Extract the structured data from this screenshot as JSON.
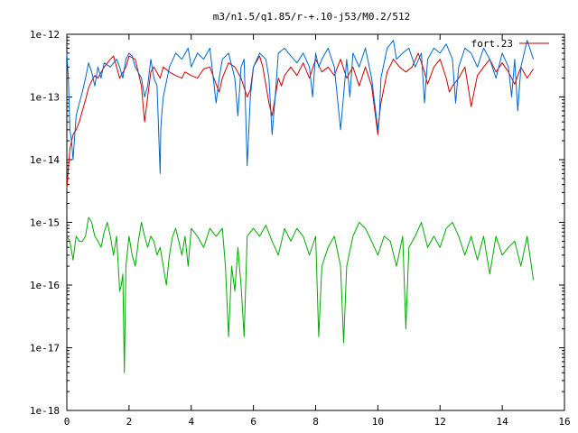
{
  "chart_data": {
    "type": "line",
    "title": "m3/n1.5/q1.85/r-+.10-j53/M0.2/512",
    "xlabel": "",
    "ylabel": "",
    "x_scale": "linear",
    "y_scale": "log",
    "xlim": [
      0,
      16
    ],
    "ylim": [
      1e-18,
      1e-12
    ],
    "x_ticks": [
      0,
      2,
      4,
      6,
      8,
      10,
      12,
      14,
      16
    ],
    "x_tick_labels": [
      "0",
      "2",
      "4",
      "6",
      "8",
      "10",
      "12",
      "14",
      "16"
    ],
    "y_ticks": [
      1e-18,
      1e-17,
      1e-16,
      1e-15,
      1e-14,
      1e-13,
      1e-12
    ],
    "y_tick_labels": [
      "1e-18",
      "1e-17",
      "1e-16",
      "1e-15",
      "1e-14",
      "1e-13",
      "1e-12"
    ],
    "grid": false,
    "legend_position": "top-right",
    "series": [
      {
        "name": "fort.23",
        "color": "#cc0000",
        "x": [
          0.0,
          0.1,
          0.2,
          0.3,
          0.4,
          0.5,
          0.6,
          0.7,
          0.8,
          0.9,
          1.0,
          1.2,
          1.4,
          1.5,
          1.7,
          1.9,
          2.0,
          2.2,
          2.4,
          2.5,
          2.6,
          2.7,
          2.8,
          3.0,
          3.1,
          3.3,
          3.5,
          3.7,
          3.8,
          4.0,
          4.2,
          4.4,
          4.6,
          4.8,
          4.9,
          5.0,
          5.2,
          5.4,
          5.6,
          5.8,
          5.9,
          6.0,
          6.2,
          6.3,
          6.5,
          6.6,
          6.7,
          6.8,
          6.9,
          7.0,
          7.2,
          7.4,
          7.6,
          7.8,
          8.0,
          8.2,
          8.4,
          8.6,
          8.8,
          9.0,
          9.2,
          9.4,
          9.6,
          9.8,
          10.0,
          10.05,
          10.1,
          10.3,
          10.5,
          10.7,
          10.9,
          11.1,
          11.3,
          11.5,
          11.6,
          11.8,
          12.0,
          12.2,
          12.3,
          12.4,
          12.6,
          12.8,
          12.9,
          13.0,
          13.2,
          13.4,
          13.6,
          13.8,
          14.0,
          14.2,
          14.4,
          14.6,
          14.8,
          15.0
        ],
        "y": [
          3.5e-15,
          1.5e-14,
          2.5e-14,
          3e-14,
          4e-14,
          6e-14,
          9e-14,
          1.4e-13,
          1.8e-13,
          2.2e-13,
          2e-13,
          3e-13,
          4e-13,
          4.5e-13,
          2e-13,
          3e-13,
          4.5e-13,
          4e-13,
          1.5e-13,
          4e-14,
          1e-13,
          2.5e-13,
          3e-13,
          2e-13,
          3e-13,
          2.5e-13,
          2.2e-13,
          2e-13,
          2.5e-13,
          2.2e-13,
          2e-13,
          2.8e-13,
          3e-13,
          1.6e-13,
          1.2e-13,
          2e-13,
          3.5e-13,
          3e-13,
          2e-13,
          1e-13,
          1.3e-13,
          3e-13,
          4.5e-13,
          3e-13,
          8e-14,
          5e-14,
          1e-13,
          2e-13,
          1.5e-13,
          2.2e-13,
          3e-13,
          2.2e-13,
          3.5e-13,
          2e-13,
          4e-13,
          2.5e-13,
          3e-13,
          2.2e-13,
          4e-13,
          2e-13,
          3e-13,
          1.5e-13,
          3e-13,
          1.5e-13,
          2.5e-14,
          5e-14,
          8e-14,
          2.5e-13,
          4e-13,
          3e-13,
          2.5e-13,
          3e-13,
          5e-13,
          2.5e-13,
          1.6e-13,
          3e-13,
          4e-13,
          2e-13,
          1.2e-13,
          1.5e-13,
          2e-13,
          3e-13,
          1.5e-13,
          7e-14,
          2.2e-13,
          3e-13,
          4e-13,
          2.5e-13,
          3.5e-13,
          2.5e-13,
          1.6e-13,
          3e-13,
          2e-13,
          2.8e-13
        ]
      },
      {
        "name": "",
        "color": "#0066cc",
        "x": [
          0.0,
          0.05,
          0.1,
          0.15,
          0.2,
          0.3,
          0.4,
          0.5,
          0.6,
          0.7,
          0.8,
          0.9,
          1.0,
          1.1,
          1.2,
          1.4,
          1.6,
          1.7,
          1.8,
          1.9,
          2.0,
          2.1,
          2.2,
          2.4,
          2.5,
          2.6,
          2.7,
          2.8,
          2.9,
          3.0,
          3.02,
          3.05,
          3.1,
          3.3,
          3.5,
          3.7,
          3.9,
          4.0,
          4.2,
          4.4,
          4.6,
          4.8,
          4.9,
          5.0,
          5.2,
          5.4,
          5.5,
          5.6,
          5.7,
          5.8,
          5.9,
          6.0,
          6.2,
          6.4,
          6.5,
          6.6,
          6.7,
          6.8,
          7.0,
          7.2,
          7.4,
          7.6,
          7.8,
          7.9,
          8.0,
          8.1,
          8.2,
          8.4,
          8.6,
          8.8,
          9.0,
          9.1,
          9.2,
          9.4,
          9.6,
          9.8,
          10.0,
          10.05,
          10.1,
          10.3,
          10.5,
          10.6,
          10.8,
          11.0,
          11.2,
          11.4,
          11.5,
          11.6,
          11.8,
          12.0,
          12.2,
          12.4,
          12.5,
          12.6,
          12.8,
          13.0,
          13.2,
          13.4,
          13.6,
          13.8,
          14.0,
          14.2,
          14.3,
          14.4,
          14.5,
          14.6,
          14.8,
          15.0
        ],
        "y": [
          5e-13,
          2e-13,
          3e-14,
          2e-14,
          1e-14,
          5e-14,
          8e-14,
          1.2e-13,
          2e-13,
          3.5e-13,
          2.5e-13,
          1.5e-13,
          3e-13,
          2e-13,
          3.5e-13,
          3e-13,
          4e-13,
          3e-13,
          2e-13,
          4e-13,
          5e-13,
          4.5e-13,
          3e-13,
          2e-13,
          1e-13,
          1.5e-13,
          4e-13,
          2e-13,
          1.5e-13,
          6e-15,
          3e-14,
          5e-14,
          1e-13,
          3e-13,
          5e-13,
          4e-13,
          6e-13,
          3e-13,
          5e-13,
          4e-13,
          6e-13,
          8e-14,
          2e-13,
          4e-13,
          5e-13,
          2e-13,
          5e-14,
          3e-13,
          4e-13,
          8e-15,
          1e-13,
          3e-13,
          5e-13,
          4e-13,
          2e-13,
          2.5e-14,
          1e-13,
          5e-13,
          6e-13,
          4.5e-13,
          3.5e-13,
          5e-13,
          3e-13,
          1e-13,
          5e-13,
          3e-13,
          4e-13,
          6e-13,
          3e-13,
          3e-14,
          4e-13,
          1e-13,
          5e-13,
          3e-13,
          6e-13,
          2e-13,
          3e-14,
          5e-14,
          2e-13,
          6e-13,
          8e-13,
          4e-13,
          5e-13,
          6e-13,
          3e-13,
          5e-13,
          8e-14,
          4e-13,
          6e-13,
          5e-13,
          7e-13,
          4e-13,
          8e-14,
          3e-13,
          6e-13,
          5e-13,
          3e-13,
          6e-13,
          4e-13,
          2e-13,
          5e-13,
          3e-13,
          1e-13,
          4e-13,
          6e-14,
          3e-13,
          8e-13,
          4e-13
        ]
      },
      {
        "name": "",
        "color": "#00aa00",
        "x": [
          0.0,
          0.1,
          0.2,
          0.3,
          0.4,
          0.5,
          0.6,
          0.7,
          0.8,
          0.9,
          1.0,
          1.1,
          1.2,
          1.3,
          1.4,
          1.5,
          1.6,
          1.7,
          1.75,
          1.8,
          1.85,
          1.9,
          2.0,
          2.1,
          2.2,
          2.3,
          2.4,
          2.5,
          2.6,
          2.7,
          2.8,
          2.9,
          3.0,
          3.1,
          3.2,
          3.3,
          3.4,
          3.5,
          3.6,
          3.7,
          3.8,
          3.9,
          4.0,
          4.2,
          4.4,
          4.6,
          4.8,
          5.0,
          5.1,
          5.2,
          5.3,
          5.4,
          5.5,
          5.6,
          5.7,
          5.8,
          6.0,
          6.2,
          6.4,
          6.6,
          6.8,
          7.0,
          7.2,
          7.4,
          7.6,
          7.8,
          8.0,
          8.1,
          8.2,
          8.4,
          8.6,
          8.8,
          8.9,
          9.0,
          9.2,
          9.4,
          9.6,
          9.8,
          10.0,
          10.2,
          10.4,
          10.6,
          10.8,
          10.9,
          11.0,
          11.2,
          11.4,
          11.6,
          11.8,
          12.0,
          12.2,
          12.4,
          12.6,
          12.8,
          13.0,
          13.2,
          13.4,
          13.6,
          13.8,
          14.0,
          14.2,
          14.4,
          14.6,
          14.8,
          15.0
        ],
        "y": [
          6e-16,
          5e-16,
          2.5e-16,
          6e-16,
          5e-16,
          5e-16,
          6e-16,
          1.2e-15,
          1e-15,
          6e-16,
          5e-16,
          4e-16,
          7e-16,
          1e-15,
          6e-16,
          3e-16,
          6e-16,
          8e-17,
          1e-16,
          1.5e-16,
          4e-18,
          2e-16,
          6e-16,
          3e-16,
          2e-16,
          5e-16,
          1e-15,
          6e-16,
          4e-16,
          6e-16,
          5e-16,
          3e-16,
          4e-16,
          2e-16,
          1e-16,
          3e-16,
          6e-16,
          8e-16,
          5e-16,
          3e-16,
          6e-16,
          2e-16,
          8e-16,
          6e-16,
          4e-16,
          8e-16,
          6e-16,
          8e-16,
          2e-16,
          1.5e-17,
          2e-16,
          8e-17,
          4e-16,
          1e-16,
          1.5e-17,
          6e-16,
          8e-16,
          6e-16,
          9e-16,
          5e-16,
          3e-16,
          8e-16,
          5e-16,
          8e-16,
          6e-16,
          3e-16,
          6e-16,
          1.5e-17,
          2e-16,
          4e-16,
          6e-16,
          2e-16,
          1.2e-17,
          2e-16,
          6e-16,
          1e-15,
          8e-16,
          5e-16,
          3e-16,
          6e-16,
          5e-16,
          2e-16,
          6e-16,
          2e-17,
          4e-16,
          6e-16,
          1e-15,
          4e-16,
          6e-16,
          4e-16,
          8e-16,
          1e-15,
          6e-16,
          3e-16,
          6e-16,
          2.5e-16,
          6e-16,
          1.5e-16,
          6e-16,
          3e-16,
          4e-16,
          5e-16,
          2e-16,
          6e-16,
          1.2e-16
        ]
      }
    ]
  }
}
